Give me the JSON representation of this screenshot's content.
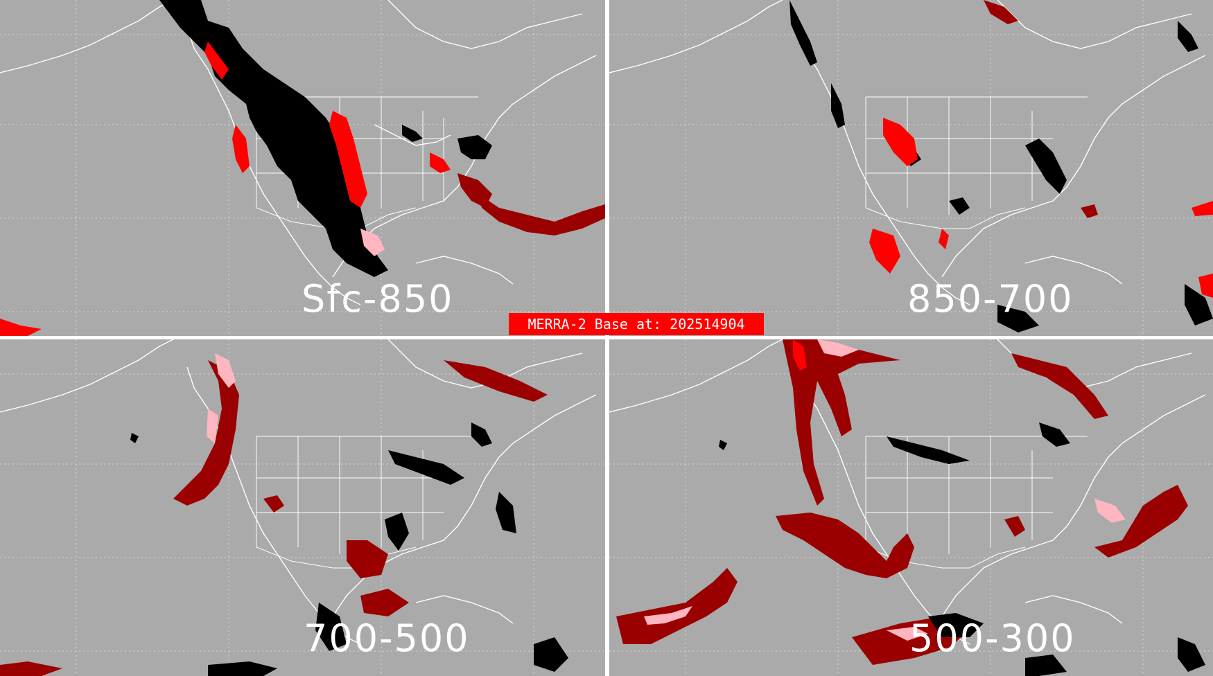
{
  "banner": {
    "text": "MERRA-2 Base at: 202514904"
  },
  "panels": [
    {
      "id": "tl",
      "layer": "Sfc-850"
    },
    {
      "id": "tr",
      "layer": "850-700"
    },
    {
      "id": "bl",
      "layer": "700-500"
    },
    {
      "id": "br",
      "layer": "500-300"
    }
  ],
  "colors": {
    "background": "#aaaaaa",
    "coastlines": "#ffffff",
    "class_black": "#000000",
    "class_red": "#ff0000",
    "class_darkred": "#9b0000",
    "class_pink": "#ffb6c1"
  }
}
